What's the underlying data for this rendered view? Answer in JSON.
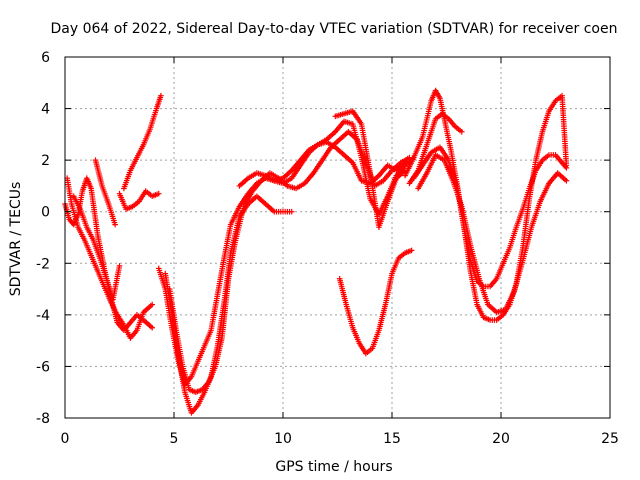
{
  "chart_data": {
    "type": "scatter",
    "title": "Day 064 of 2022, Sidereal Day-to-day VTEC variation (SDTVAR) for receiver coen",
    "xlabel": "GPS time / hours",
    "ylabel": "SDTVAR / TECUs",
    "xlim": [
      0,
      25
    ],
    "ylim": [
      -8,
      6
    ],
    "x_ticks": [
      "0",
      "5",
      "10",
      "15",
      "20",
      "25"
    ],
    "y_ticks": [
      "-8",
      "-6",
      "-4",
      "-2",
      "0",
      "2",
      "4",
      "6"
    ],
    "grid": true,
    "marker": "plus",
    "color": "#ff0000",
    "series": [
      {
        "x": [
          0.0,
          0.2,
          0.4,
          0.6,
          0.8,
          1.0,
          1.2,
          1.5,
          1.8,
          2.1,
          2.4,
          2.7,
          3.0,
          3.3,
          3.6,
          4.0
        ],
        "y": [
          0.3,
          -0.3,
          -0.5,
          -0.1,
          0.8,
          1.3,
          0.9,
          -0.9,
          -2.2,
          -3.3,
          -4.3,
          -4.6,
          -4.3,
          -4.0,
          -4.2,
          -4.5
        ]
      },
      {
        "x": [
          0.1,
          0.3,
          0.6,
          0.9,
          1.2,
          1.5,
          1.8,
          2.1,
          2.4,
          2.7,
          3.0,
          3.3,
          3.6,
          4.0
        ],
        "y": [
          1.3,
          0.3,
          -0.6,
          -1.1,
          -1.7,
          -2.3,
          -2.9,
          -3.5,
          -4.0,
          -4.4,
          -4.9,
          -4.6,
          -3.9,
          -3.6
        ]
      },
      {
        "x": [
          0.4,
          0.7,
          1.0,
          1.3,
          1.6,
          1.9,
          2.2,
          2.5
        ],
        "y": [
          0.6,
          0.1,
          -0.6,
          -1.1,
          -1.8,
          -2.6,
          -3.4,
          -2.1
        ]
      },
      {
        "x": [
          1.4,
          1.7,
          2.0,
          2.3
        ],
        "y": [
          2.0,
          1.0,
          0.3,
          -0.5
        ]
      },
      {
        "x": [
          2.5,
          2.8,
          3.1,
          3.4,
          3.7,
          4.0,
          4.3
        ],
        "y": [
          0.7,
          0.1,
          0.2,
          0.4,
          0.8,
          0.6,
          0.7
        ]
      },
      {
        "x": [
          2.7,
          3.0,
          3.3,
          3.6,
          3.9,
          4.2,
          4.4
        ],
        "y": [
          0.9,
          1.6,
          2.1,
          2.6,
          3.2,
          4.0,
          4.5
        ]
      },
      {
        "x": [
          4.3,
          4.6,
          4.9,
          5.2,
          5.5,
          5.8,
          6.1,
          6.4,
          6.7,
          7.0,
          7.3,
          7.6,
          8.0,
          8.4,
          8.8,
          9.2,
          9.6,
          10.0,
          10.4,
          10.8,
          11.2,
          11.6,
          12.0,
          12.4,
          12.8,
          13.2,
          13.6,
          14.0,
          14.4,
          14.8,
          15.2,
          15.6
        ],
        "y": [
          -2.2,
          -3.0,
          -4.5,
          -5.8,
          -6.7,
          -6.4,
          -5.8,
          -5.2,
          -4.6,
          -3.2,
          -1.8,
          -0.5,
          0.2,
          0.7,
          1.1,
          1.3,
          1.2,
          1.3,
          1.6,
          2.0,
          2.4,
          2.6,
          2.7,
          2.5,
          2.2,
          1.9,
          1.2,
          1.1,
          1.4,
          1.8,
          1.6,
          1.9
        ]
      },
      {
        "x": [
          4.6,
          4.9,
          5.2,
          5.5,
          5.8,
          6.1,
          6.4,
          6.7,
          7.0,
          7.3,
          7.6,
          8.0,
          8.4,
          8.8,
          9.2,
          9.6,
          10.0,
          10.4
        ],
        "y": [
          -2.4,
          -3.9,
          -5.6,
          -7.0,
          -7.8,
          -7.5,
          -7.0,
          -6.4,
          -5.2,
          -3.5,
          -1.6,
          -0.2,
          0.3,
          0.6,
          0.3,
          0.0,
          0.0,
          0.0
        ]
      },
      {
        "x": [
          4.8,
          5.1,
          5.4,
          5.7,
          6.0,
          6.3,
          6.6,
          6.9,
          7.2,
          7.5,
          7.8,
          8.2,
          8.6,
          9.0,
          9.4,
          9.8,
          10.2,
          10.6,
          11.0,
          11.4,
          11.8,
          12.2,
          12.6,
          13.0,
          13.4,
          13.8,
          14.2,
          14.6,
          15.0,
          15.4,
          15.8
        ],
        "y": [
          -3.0,
          -4.6,
          -6.0,
          -6.9,
          -7.0,
          -6.9,
          -6.6,
          -6.0,
          -4.9,
          -2.6,
          -1.2,
          0.2,
          0.8,
          1.2,
          1.5,
          1.3,
          1.0,
          0.9,
          1.1,
          1.5,
          2.0,
          2.5,
          2.8,
          3.1,
          2.8,
          1.9,
          1.0,
          1.2,
          1.6,
          1.9,
          2.1
        ]
      },
      {
        "x": [
          8.0,
          8.4,
          8.8,
          9.2,
          9.6,
          10.0,
          10.4,
          10.8,
          11.2,
          11.6,
          12.0,
          12.4,
          12.8,
          13.2,
          13.6,
          14.0,
          14.4,
          14.8,
          15.2,
          15.6,
          16.0
        ],
        "y": [
          1.0,
          1.3,
          1.5,
          1.4,
          1.2,
          1.1,
          1.3,
          1.8,
          2.3,
          2.6,
          2.8,
          3.1,
          3.5,
          3.4,
          2.1,
          0.5,
          -0.1,
          0.6,
          1.4,
          1.8,
          2.1
        ]
      },
      {
        "x": [
          12.4,
          12.8,
          13.2,
          13.6,
          14.0,
          14.4,
          14.8,
          15.2,
          15.6
        ],
        "y": [
          3.7,
          3.8,
          3.9,
          3.4,
          1.5,
          -0.6,
          0.4,
          1.3,
          1.6
        ]
      },
      {
        "x": [
          12.6,
          12.9,
          13.2,
          13.5,
          13.8,
          14.1,
          14.4,
          14.7,
          15.0,
          15.3,
          15.6,
          15.9
        ],
        "y": [
          -2.6,
          -3.6,
          -4.5,
          -5.1,
          -5.5,
          -5.3,
          -4.6,
          -3.6,
          -2.4,
          -1.8,
          -1.6,
          -1.5
        ]
      },
      {
        "x": [
          15.6,
          16.0,
          16.4,
          16.8,
          17.0,
          17.2,
          17.4,
          17.7,
          18.0,
          18.3,
          18.6,
          18.9,
          19.2,
          19.5,
          19.8,
          20.1,
          20.4,
          20.7,
          21.0,
          21.3,
          21.6,
          21.9,
          22.2,
          22.5,
          22.8,
          23.0
        ],
        "y": [
          1.4,
          2.1,
          2.9,
          4.3,
          4.7,
          4.4,
          3.6,
          2.4,
          1.0,
          -0.6,
          -2.3,
          -3.6,
          -4.1,
          -4.2,
          -4.2,
          -4.0,
          -3.6,
          -2.8,
          -1.4,
          0.5,
          2.0,
          3.1,
          3.9,
          4.3,
          4.5,
          1.8
        ]
      },
      {
        "x": [
          15.8,
          16.2,
          16.6,
          17.0,
          17.3,
          17.6,
          17.9,
          18.2
        ],
        "y": [
          1.1,
          1.6,
          2.6,
          3.6,
          3.8,
          3.6,
          3.3,
          3.1
        ]
      },
      {
        "x": [
          16.0,
          16.4,
          16.8,
          17.2,
          17.6,
          18.0,
          18.3,
          18.6,
          18.9,
          19.2,
          19.5,
          19.8,
          20.1,
          20.4,
          20.7,
          21.0,
          21.3,
          21.6,
          21.9,
          22.2,
          22.5,
          22.8,
          23.0
        ],
        "y": [
          1.3,
          1.8,
          2.3,
          2.5,
          2.0,
          0.9,
          -0.6,
          -1.9,
          -2.7,
          -2.9,
          -2.9,
          -2.6,
          -2.0,
          -1.4,
          -0.6,
          0.1,
          0.9,
          1.6,
          2.0,
          2.2,
          2.2,
          1.9,
          1.7
        ]
      },
      {
        "x": [
          16.2,
          16.6,
          17.0,
          17.4,
          17.8,
          18.2,
          18.6,
          19.0,
          19.4,
          19.8,
          20.2,
          20.6,
          21.0,
          21.4,
          21.8,
          22.2,
          22.6,
          23.0
        ],
        "y": [
          0.9,
          1.5,
          2.2,
          2.0,
          1.2,
          0.2,
          -1.3,
          -2.6,
          -3.6,
          -3.9,
          -3.8,
          -3.1,
          -1.9,
          -0.6,
          0.4,
          1.1,
          1.5,
          1.2
        ]
      }
    ]
  }
}
